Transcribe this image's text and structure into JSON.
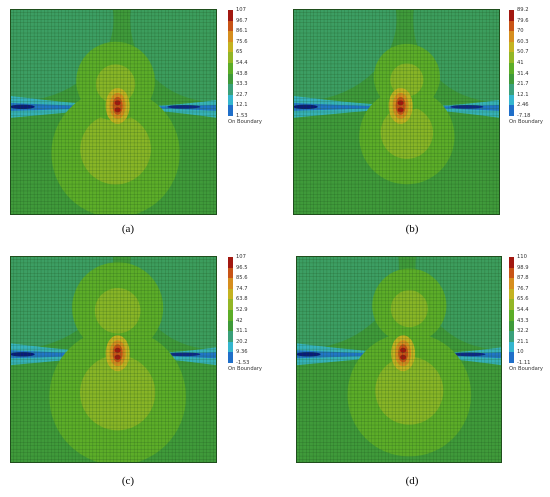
{
  "colors": {
    "scale": [
      "#0a1a7a",
      "#1f6fc9",
      "#35b6cf",
      "#3aa07a",
      "#3f9a3a",
      "#5cad28",
      "#93b626",
      "#c4b321",
      "#d68e1e",
      "#c85416",
      "#a21810"
    ],
    "field_green": "#3f9a3a",
    "mesh_line": "#235a22"
  },
  "panels": [
    {
      "caption": "(a)",
      "legend_ticks": [
        "107",
        "96.7",
        "86.1",
        "75.6",
        "65",
        "54.4",
        "43.8",
        "33.3",
        "22.7",
        "12.1",
        "1.53"
      ],
      "legend_note": "On Boundary"
    },
    {
      "caption": "(b)",
      "legend_ticks": [
        "89.2",
        "79.6",
        "70",
        "60.3",
        "50.7",
        "41",
        "31.4",
        "21.7",
        "12.1",
        "2.46",
        "-7.18"
      ],
      "legend_note": "On Boundary"
    },
    {
      "caption": "(c)",
      "legend_ticks": [
        "107",
        "96.5",
        "85.6",
        "74.7",
        "63.8",
        "52.9",
        "42",
        "31.1",
        "20.2",
        "9.36",
        "-1.53"
      ],
      "legend_note": "On Boundary"
    },
    {
      "caption": "(d)",
      "legend_ticks": [
        "110",
        "98.9",
        "87.8",
        "76.7",
        "65.6",
        "54.4",
        "43.3",
        "32.2",
        "21.1",
        "10",
        "-1.11"
      ],
      "legend_note": "On Boundary"
    }
  ]
}
